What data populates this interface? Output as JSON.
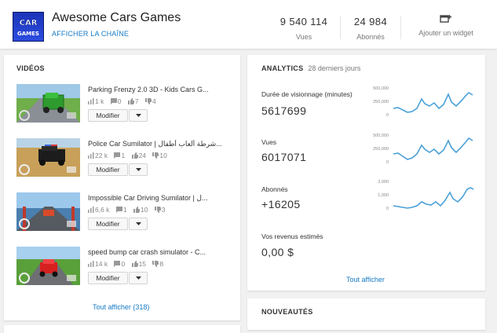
{
  "header": {
    "logo_text_1": "CAR",
    "logo_text_2": "GAMES",
    "channel_name": "Awesome Cars Games",
    "channel_link": "AFFICHER LA CHAÎNE",
    "stats": [
      {
        "value": "9 540 114",
        "label": "Vues"
      },
      {
        "value": "24 984",
        "label": "Abonnés"
      }
    ],
    "widget_label": "Ajouter un widget",
    "widget_icon": "add-widget-icon"
  },
  "videos": {
    "title": "VIDÉOS",
    "items": [
      {
        "title": "Parking Frenzy 2.0 3D - Kids Cars G...",
        "views": "1 k",
        "comments": "0",
        "likes": "7",
        "dislikes": "4",
        "edit_label": "Modifier"
      },
      {
        "title": "Police Car Sumilator | شرطة ألعاب أطفال...",
        "views": "22 k",
        "comments": "1",
        "likes": "24",
        "dislikes": "10",
        "edit_label": "Modifier"
      },
      {
        "title": "Impossible Car Driving Sumilator | ل...",
        "views": "6,6 k",
        "comments": "1",
        "likes": "10",
        "dislikes": "3",
        "edit_label": "Modifier"
      },
      {
        "title": "speed bump car crash simulator - C...",
        "views": "14 k",
        "comments": "0",
        "likes": "15",
        "dislikes": "8",
        "edit_label": "Modifier"
      }
    ],
    "show_all": "Tout afficher (318)"
  },
  "analytics": {
    "title": "ANALYTICS",
    "period": "28 derniers jours",
    "metrics": [
      {
        "label": "Durée de visionnage (minutes)",
        "value": "5617699",
        "ticks": [
          "500,000",
          "250,000",
          "0"
        ]
      },
      {
        "label": "Vues",
        "value": "6017071",
        "ticks": [
          "500,000",
          "250,000",
          "0"
        ]
      },
      {
        "label": "Abonnés",
        "value": "+16205",
        "ticks": [
          "2,000",
          "1,000",
          "0"
        ]
      },
      {
        "label": "Vos revenus estimés",
        "value": "0,00 $",
        "ticks": []
      }
    ],
    "show_all": "Tout afficher",
    "line_color": "#4aa0d8"
  },
  "news": {
    "title": "NOUVEAUTÉS"
  },
  "colors": {
    "link": "#167ac6",
    "background": "#f1f1f1"
  }
}
